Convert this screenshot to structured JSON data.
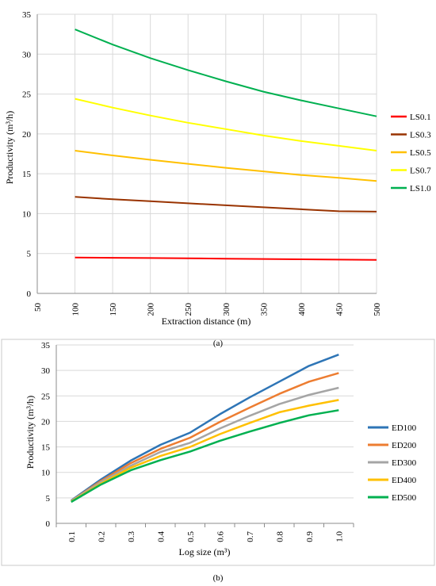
{
  "chart_data": [
    {
      "type": "line",
      "panel_label": "(a)",
      "title": "",
      "xlabel": "Extraction distance (m)",
      "ylabel": "Productivity (m³/h)",
      "xlim": [
        50,
        500
      ],
      "ylim": [
        0,
        35
      ],
      "x_ticks": [
        50,
        100,
        150,
        200,
        250,
        300,
        350,
        400,
        450,
        500
      ],
      "y_ticks": [
        0,
        5,
        10,
        15,
        20,
        25,
        30,
        35
      ],
      "grid": true,
      "legend": "right",
      "x": [
        100,
        150,
        200,
        250,
        300,
        350,
        400,
        450,
        500
      ],
      "series": [
        {
          "name": "LS0.1",
          "color": "#ff0000",
          "values": [
            4.5,
            4.46,
            4.43,
            4.4,
            4.36,
            4.32,
            4.28,
            4.24,
            4.2
          ]
        },
        {
          "name": "LS0.3",
          "color": "#993300",
          "values": [
            12.1,
            11.8,
            11.55,
            11.3,
            11.05,
            10.8,
            10.55,
            10.3,
            10.25
          ]
        },
        {
          "name": "LS0.5",
          "color": "#ffc000",
          "values": [
            17.9,
            17.3,
            16.75,
            16.25,
            15.75,
            15.3,
            14.85,
            14.5,
            14.1
          ]
        },
        {
          "name": "LS0.7",
          "color": "#ffff00",
          "values": [
            24.4,
            23.3,
            22.3,
            21.4,
            20.6,
            19.8,
            19.1,
            18.5,
            17.9
          ]
        },
        {
          "name": "LS1.0",
          "color": "#00b050",
          "values": [
            33.1,
            31.2,
            29.5,
            28.0,
            26.6,
            25.3,
            24.2,
            23.2,
            22.2
          ]
        }
      ]
    },
    {
      "type": "line",
      "panel_label": "(b)",
      "title": "",
      "xlabel": "Log size (m³)",
      "ylabel": "Productivity (m³/h)",
      "ylim": [
        0,
        35
      ],
      "categories": [
        "0.1",
        "0.2",
        "0.3",
        "0.4",
        "0.5",
        "0.6",
        "0.7",
        "0.8",
        "0.9",
        "1.0"
      ],
      "y_ticks": [
        0,
        5,
        10,
        15,
        20,
        25,
        30,
        35
      ],
      "grid": true,
      "legend": "right",
      "series": [
        {
          "name": "ED100",
          "color": "#2e75b6",
          "values": [
            4.5,
            8.6,
            12.3,
            15.4,
            17.8,
            21.4,
            24.7,
            27.8,
            30.9,
            33.1
          ]
        },
        {
          "name": "ED200",
          "color": "#ed7d31",
          "values": [
            4.4,
            8.3,
            11.8,
            14.6,
            16.8,
            19.9,
            22.7,
            25.4,
            27.8,
            29.5
          ]
        },
        {
          "name": "ED300",
          "color": "#a5a5a5",
          "values": [
            4.4,
            8.1,
            11.3,
            14.0,
            15.8,
            18.6,
            21.1,
            23.4,
            25.2,
            26.6
          ]
        },
        {
          "name": "ED400",
          "color": "#ffc000",
          "values": [
            4.3,
            7.8,
            10.9,
            13.2,
            15.0,
            17.5,
            19.7,
            21.8,
            23.1,
            24.2
          ]
        },
        {
          "name": "ED500",
          "color": "#00b050",
          "values": [
            4.2,
            7.6,
            10.4,
            12.4,
            14.1,
            16.2,
            18.0,
            19.7,
            21.2,
            22.2
          ]
        }
      ]
    }
  ]
}
